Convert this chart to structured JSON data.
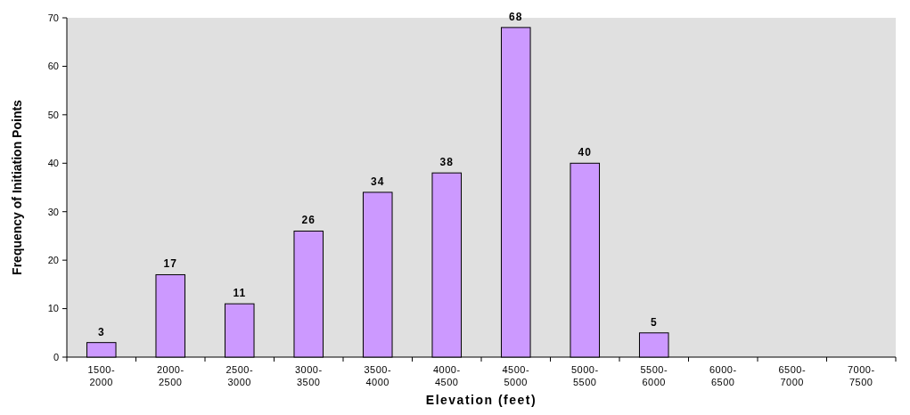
{
  "chart_data": {
    "type": "bar",
    "xlabel": "Elevation (feet)",
    "ylabel": "Frequency of Initiation Points",
    "categories": [
      "1500-2000",
      "2000-2500",
      "2500-3000",
      "3000-3500",
      "3500-4000",
      "4000-4500",
      "4500-5000",
      "5000-5500",
      "5500-6000",
      "6000-6500",
      "6500-7000",
      "7000-7500"
    ],
    "values": [
      3,
      17,
      11,
      26,
      34,
      38,
      68,
      40,
      5,
      0,
      0,
      0
    ],
    "value_labels": [
      "3",
      "17",
      "11",
      "26",
      "34",
      "38",
      "68",
      "40",
      "5",
      null,
      null,
      null
    ],
    "color": "#cc99ff",
    "ylim": [
      0,
      70
    ],
    "yticks": [
      0,
      10,
      20,
      30,
      40,
      50,
      60,
      70
    ]
  }
}
